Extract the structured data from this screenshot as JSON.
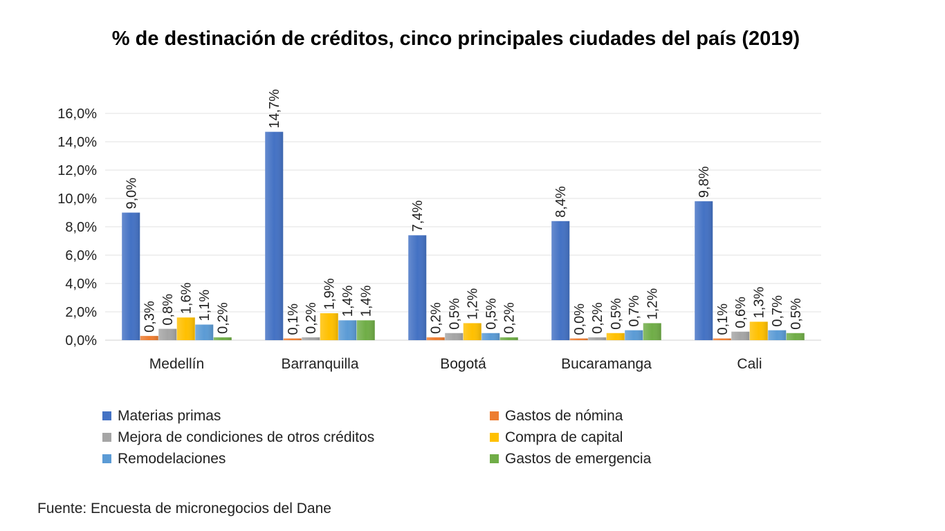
{
  "chart_data": {
    "type": "bar",
    "title": "% de destinación de créditos, cinco principales ciudades del país (2019)",
    "categories": [
      "Medellín",
      "Barranquilla",
      "Bogotá",
      "Bucaramanga",
      "Cali"
    ],
    "series": [
      {
        "name": "Materias primas",
        "color": "#4472C4",
        "values": [
          9.0,
          14.7,
          7.4,
          8.4,
          9.8
        ]
      },
      {
        "name": "Gastos de nómina",
        "color": "#ED7D31",
        "values": [
          0.3,
          0.1,
          0.2,
          0.0,
          0.1
        ]
      },
      {
        "name": "Mejora de condiciones de otros créditos",
        "color": "#A5A5A5",
        "values": [
          0.8,
          0.2,
          0.5,
          0.2,
          0.6
        ]
      },
      {
        "name": "Compra de capital",
        "color": "#FFC000",
        "values": [
          1.6,
          1.9,
          1.2,
          0.5,
          1.3
        ]
      },
      {
        "name": "Remodelaciones",
        "color": "#5B9BD5",
        "values": [
          1.1,
          1.4,
          0.5,
          0.7,
          0.7
        ]
      },
      {
        "name": "Gastos de emergencia",
        "color": "#70AD47",
        "values": [
          0.2,
          1.4,
          0.2,
          1.2,
          0.5
        ]
      }
    ],
    "ylim": [
      0,
      16
    ],
    "yticks": [
      "0,0%",
      "2,0%",
      "4,0%",
      "6,0%",
      "8,0%",
      "10,0%",
      "12,0%",
      "14,0%",
      "16,0%"
    ],
    "data_labels": [
      [
        "9,0%",
        "14,7%",
        "7,4%",
        "8,4%",
        "9,8%"
      ],
      [
        "0,3%",
        "0,1%",
        "0,2%",
        "0,0%",
        "0,1%"
      ],
      [
        "0,8%",
        "0,2%",
        "0,5%",
        "0,2%",
        "0,6%"
      ],
      [
        "1,6%",
        "1,9%",
        "1,2%",
        "0,5%",
        "1,3%"
      ],
      [
        "1,1%",
        "1,4%",
        "0,5%",
        "0,7%",
        "0,7%"
      ],
      [
        "0,2%",
        "1,4%",
        "0,2%",
        "1,2%",
        "0,5%"
      ]
    ],
    "grid": true,
    "legend_position": "bottom"
  },
  "source": "Fuente: Encuesta de micronegocios del Dane"
}
